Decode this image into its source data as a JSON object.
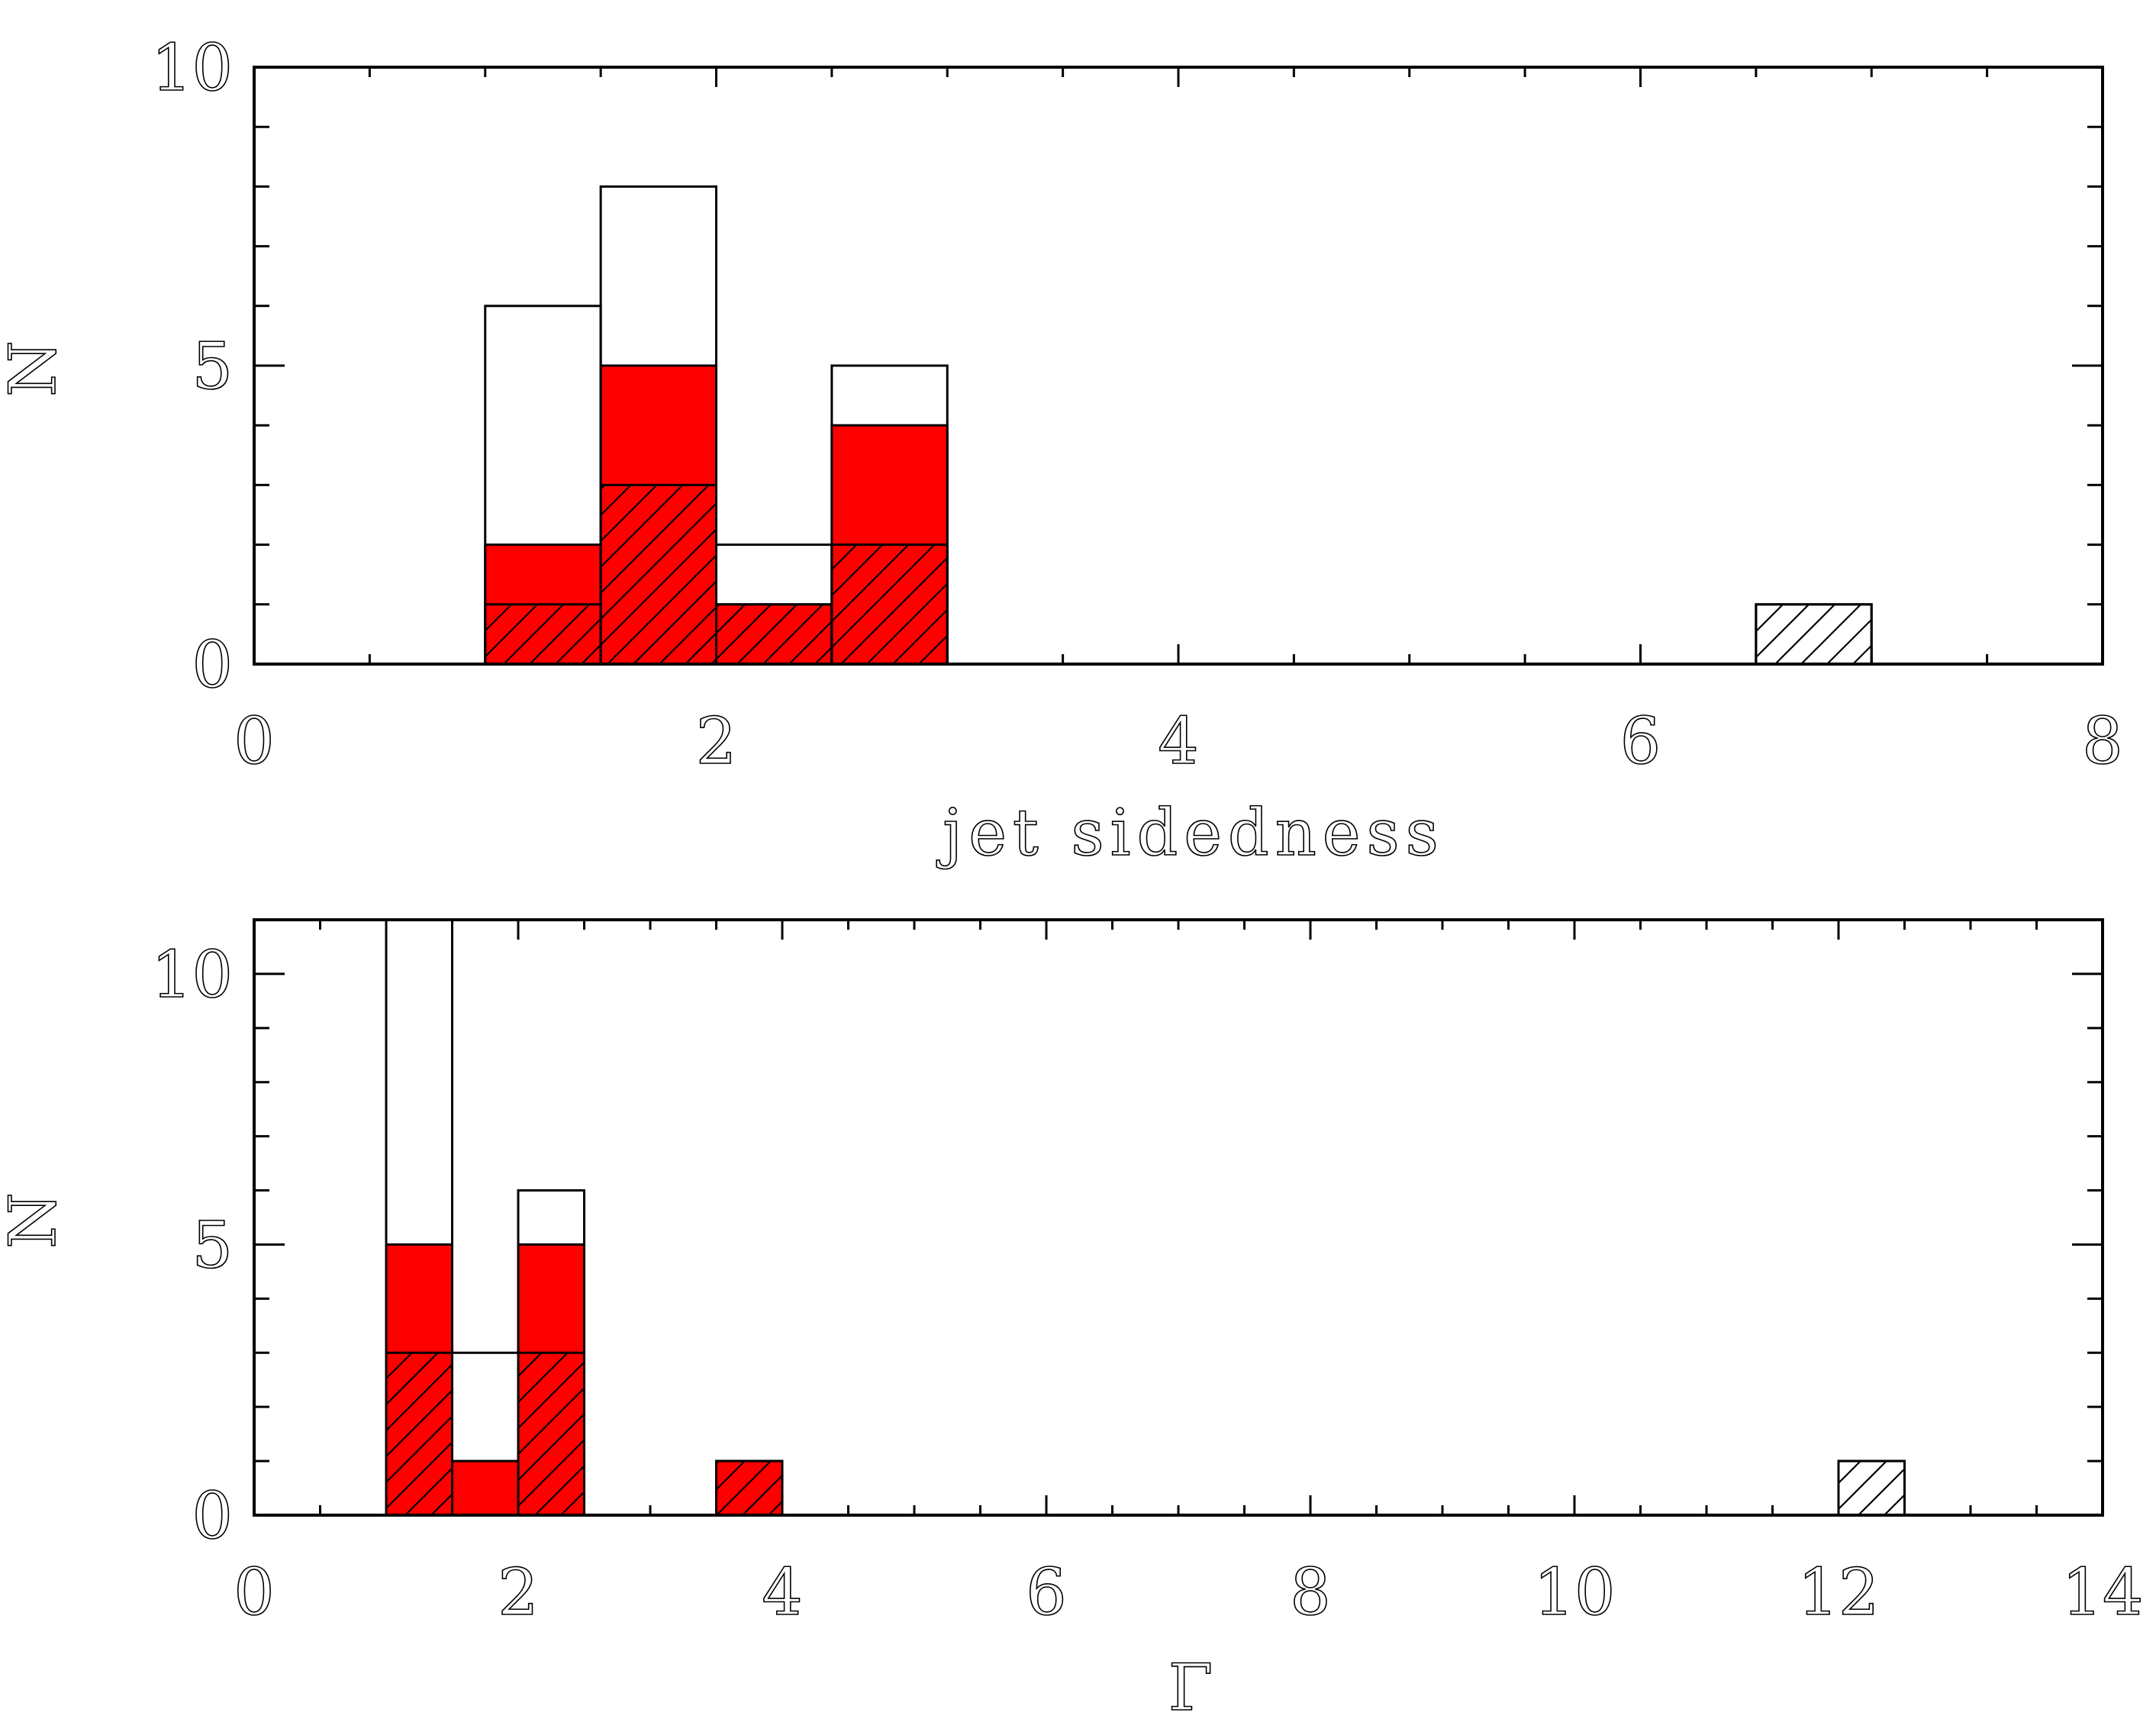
{
  "colors": {
    "highlight": "#ff0000",
    "outline": "#000000",
    "background": "#ffffff"
  },
  "chart_data": [
    {
      "type": "bar",
      "histogram": true,
      "xlabel": "jet sidedness",
      "ylabel": "N",
      "xlim": [
        0,
        8
      ],
      "ylim": [
        0,
        10
      ],
      "xticks": [
        0,
        2,
        4,
        6,
        8
      ],
      "yticks": [
        0,
        5,
        10
      ],
      "x_minor_step": 0.5,
      "y_minor_step": 1,
      "bin_width": 0.5,
      "bins": [
        1.0,
        1.5,
        2.0,
        2.5,
        6.5
      ],
      "series": [
        {
          "fill": "white",
          "values": [
            6,
            8,
            2,
            5,
            1
          ]
        },
        {
          "fill": "red",
          "values": [
            2,
            5,
            1,
            4,
            0
          ]
        },
        {
          "fill": "hatched",
          "values": [
            1,
            3,
            1,
            2,
            1
          ]
        }
      ]
    },
    {
      "type": "bar",
      "histogram": true,
      "xlabel": "Γ",
      "ylabel": "N",
      "xlim": [
        0,
        14
      ],
      "ylim": [
        0,
        11
      ],
      "xticks": [
        0,
        2,
        4,
        6,
        8,
        10,
        12,
        14
      ],
      "yticks": [
        0,
        5,
        10
      ],
      "x_minor_step": 0.5,
      "y_minor_step": 1,
      "bin_width": 0.5,
      "bins": [
        1.0,
        1.5,
        2.0,
        3.5,
        12.0
      ],
      "series": [
        {
          "fill": "white",
          "values": [
            11,
            3,
            6,
            1,
            1
          ]
        },
        {
          "fill": "red",
          "values": [
            5,
            1,
            5,
            1,
            0
          ]
        },
        {
          "fill": "hatched",
          "values": [
            3,
            0,
            3,
            1,
            1
          ]
        }
      ]
    }
  ]
}
